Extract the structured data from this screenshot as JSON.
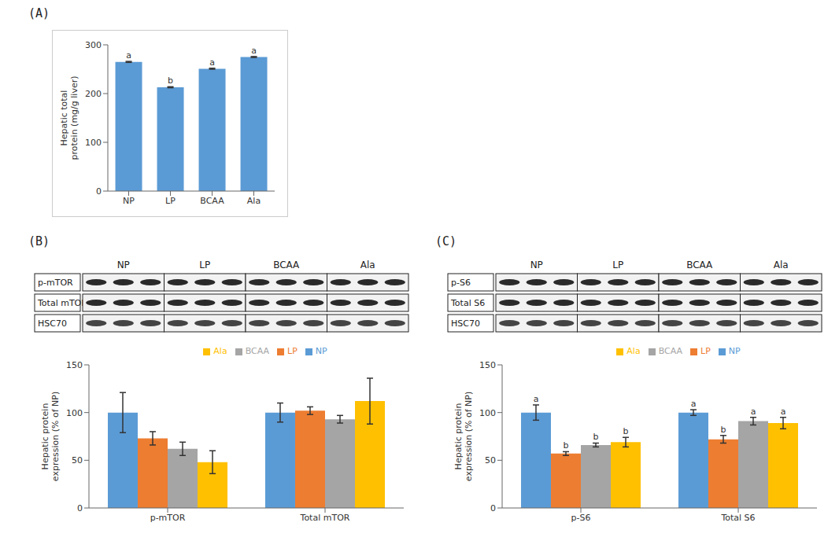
{
  "chart_data": [
    {
      "type": "bar",
      "title": "(A)",
      "y_label": "Hepatic total protein (mg/g liver)",
      "categories": [
        "NP",
        "LP",
        "BCAA",
        "Ala"
      ],
      "values": [
        265,
        213,
        251,
        275
      ],
      "errors": [
        1,
        1,
        1,
        1
      ],
      "annotations": [
        "a",
        "b",
        "a",
        "a"
      ],
      "color": "#5b9bd5",
      "ylim": [
        0,
        300
      ],
      "yticks": [
        0,
        100,
        200,
        300
      ],
      "grid": false
    },
    {
      "type": "bar",
      "title": "(B)",
      "y_label": "Hepatic protein expression (% of NP)",
      "categories": [
        "p-mTOR",
        "Total mTOR"
      ],
      "series": [
        {
          "name": "NP",
          "color": "#5b9bd5",
          "values": [
            100,
            100
          ],
          "errors": [
            21,
            10
          ]
        },
        {
          "name": "LP",
          "color": "#ed7d31",
          "values": [
            73,
            102
          ],
          "errors": [
            7,
            4
          ]
        },
        {
          "name": "BCAA",
          "color": "#a5a5a5",
          "values": [
            62,
            93
          ],
          "errors": [
            7,
            4
          ]
        },
        {
          "name": "Ala",
          "color": "#ffc000",
          "values": [
            48,
            112
          ],
          "errors": [
            12,
            24
          ]
        }
      ],
      "ylim": [
        0,
        150
      ],
      "yticks": [
        0,
        50,
        100,
        150
      ],
      "grid": false,
      "legend": "top"
    },
    {
      "type": "bar",
      "title": "(C)",
      "y_label": "Hepatic protein expression (% of NP)",
      "categories": [
        "p-S6",
        "Total S6"
      ],
      "series": [
        {
          "name": "NP",
          "color": "#5b9bd5",
          "values": [
            100,
            100
          ],
          "errors": [
            8,
            3
          ],
          "annotations": [
            "a",
            "a"
          ]
        },
        {
          "name": "LP",
          "color": "#ed7d31",
          "values": [
            57,
            72
          ],
          "errors": [
            2,
            4
          ],
          "annotations": [
            "b",
            "b"
          ]
        },
        {
          "name": "BCAA",
          "color": "#a5a5a5",
          "values": [
            66,
            91
          ],
          "errors": [
            2,
            4
          ],
          "annotations": [
            "b",
            "a"
          ]
        },
        {
          "name": "Ala",
          "color": "#ffc000",
          "values": [
            69,
            89
          ],
          "errors": [
            5,
            6
          ],
          "annotations": [
            "b",
            "a"
          ]
        }
      ],
      "ylim": [
        0,
        150
      ],
      "yticks": [
        0,
        50,
        100,
        150
      ],
      "grid": false,
      "legend": "top"
    }
  ],
  "blots": [
    {
      "lanes": [
        "NP",
        "LP",
        "BCAA",
        "Ala"
      ],
      "rows": [
        "p-mTOR",
        "Total mTOR",
        "HSC70"
      ]
    },
    {
      "lanes": [
        "NP",
        "LP",
        "BCAA",
        "Ala"
      ],
      "rows": [
        "p-S6",
        "Total S6",
        "HSC70"
      ]
    }
  ]
}
